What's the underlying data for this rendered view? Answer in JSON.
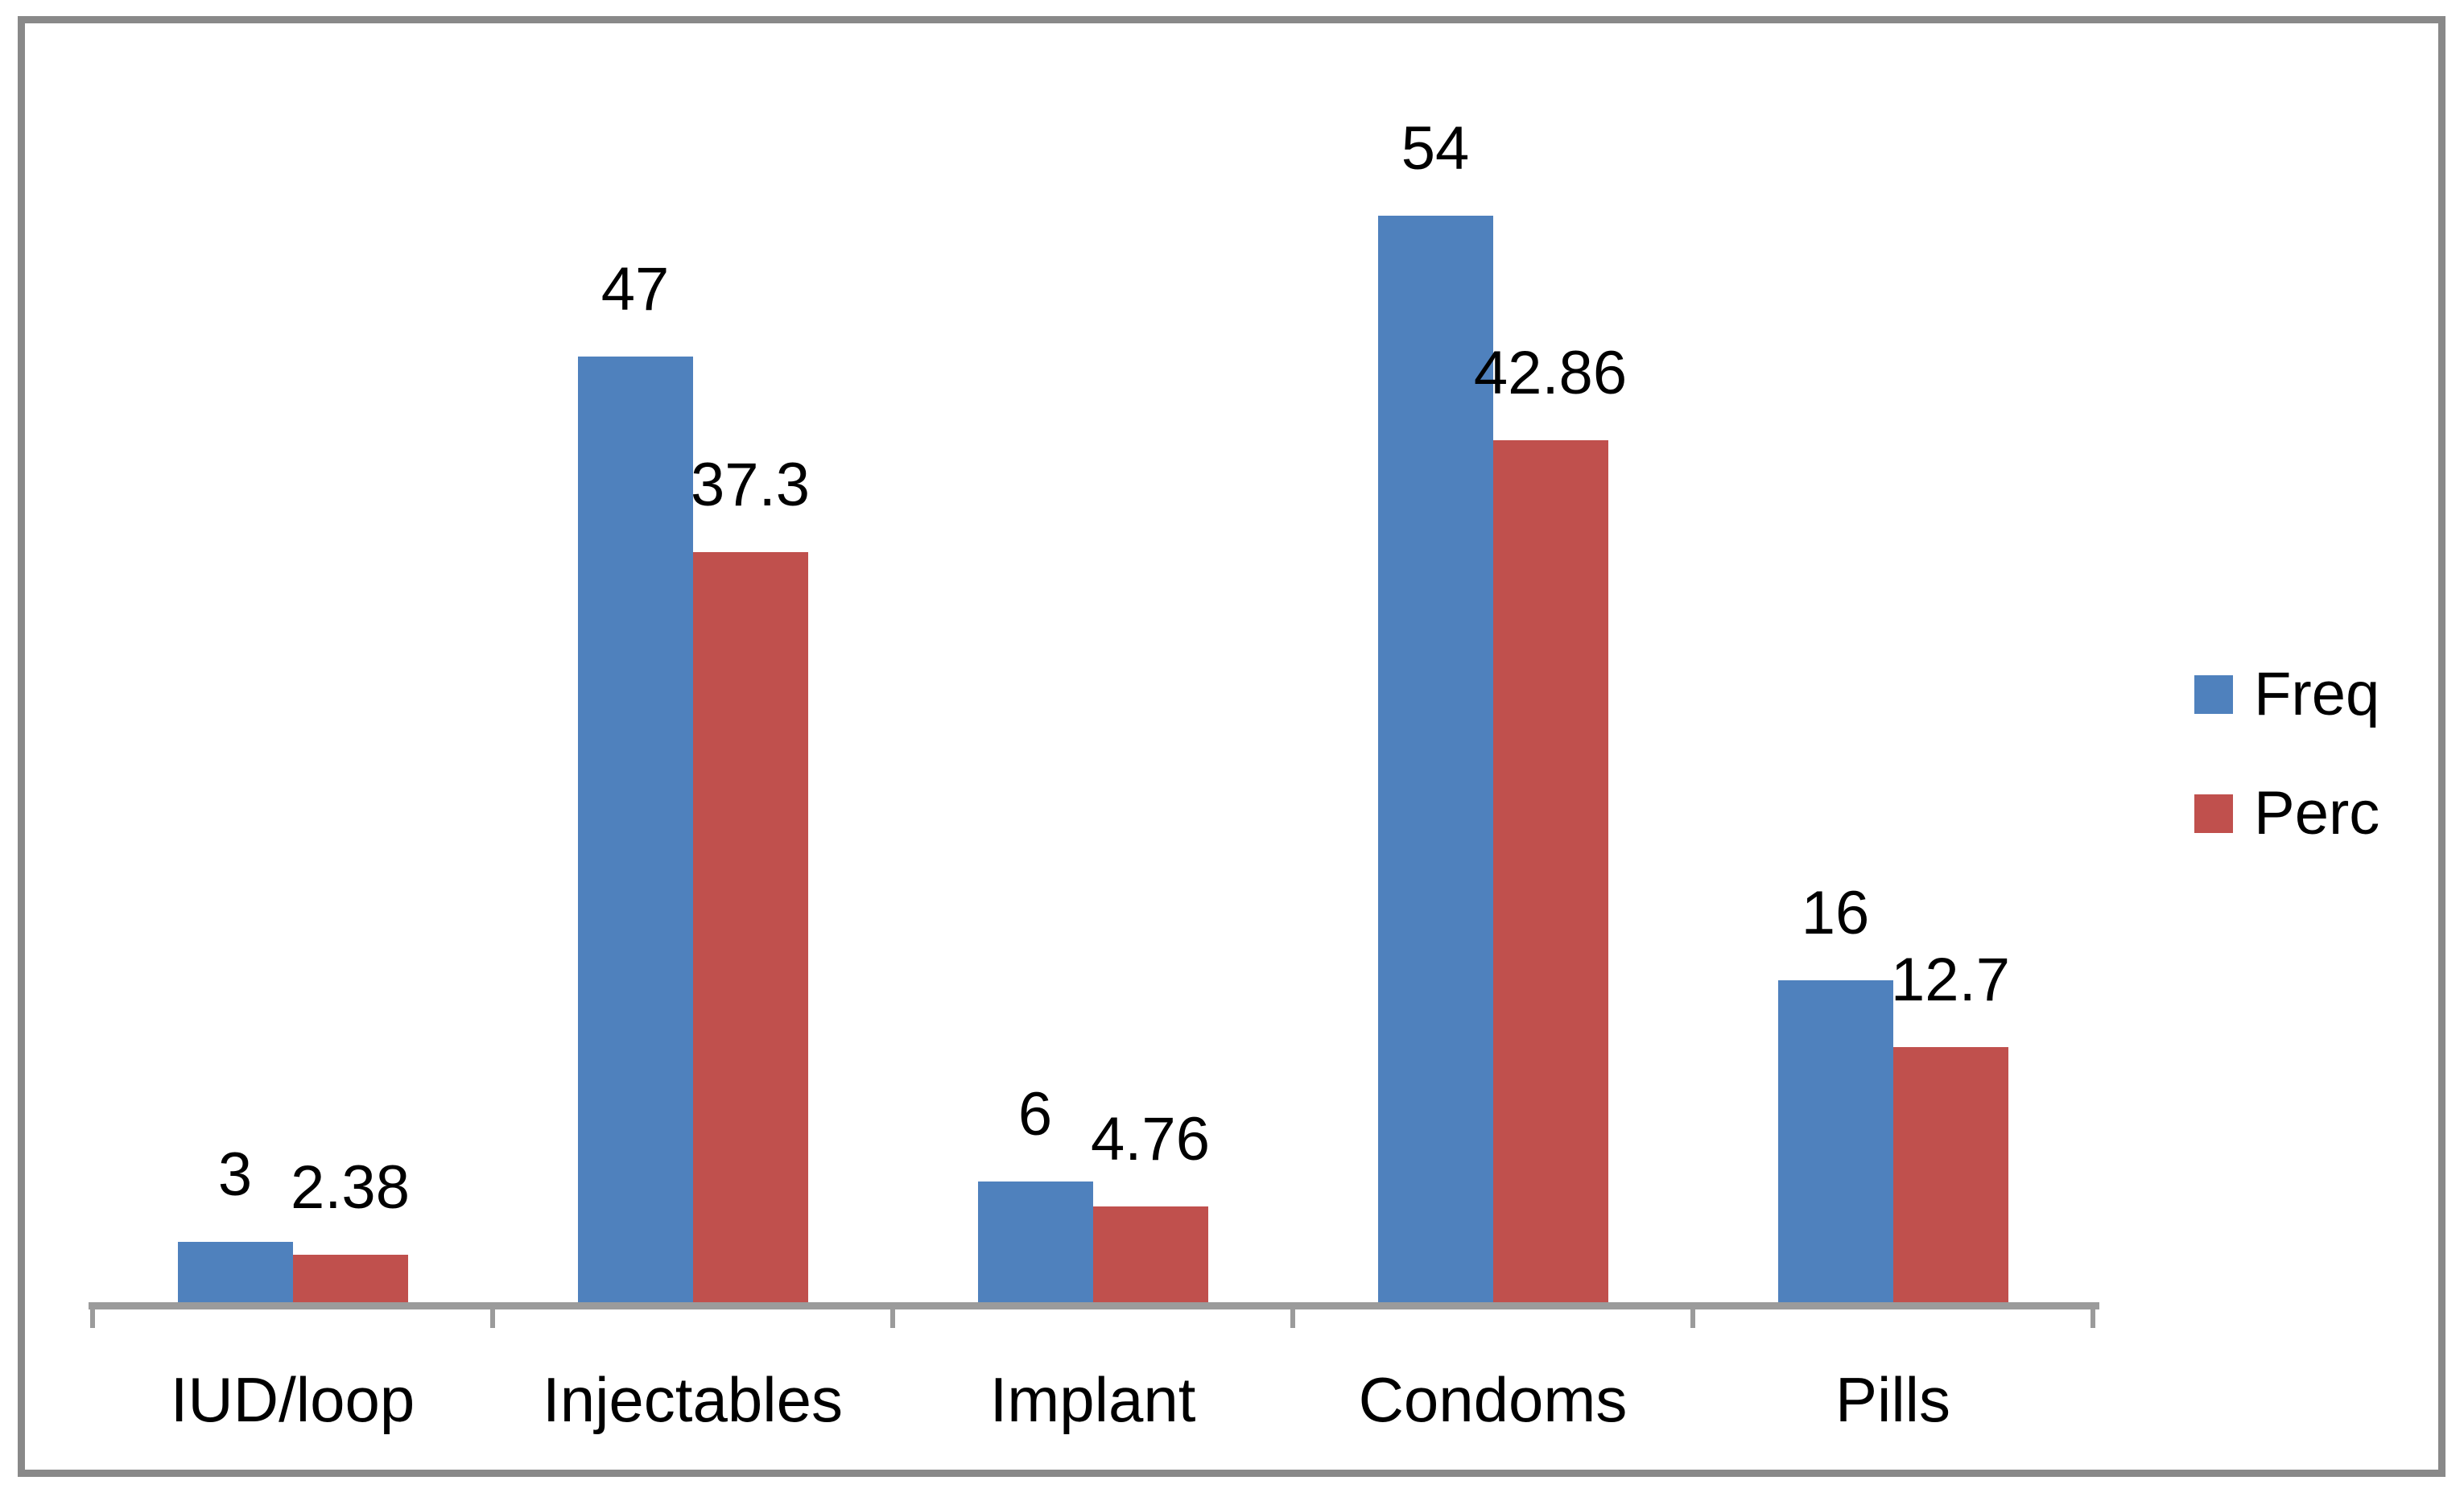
{
  "chart_data": {
    "type": "bar",
    "title": "",
    "xlabel": "",
    "ylabel": "",
    "categories": [
      "IUD/loop",
      "Injectables",
      "Implant",
      "Condoms",
      "Pills"
    ],
    "series": [
      {
        "name": "Freq",
        "color": "#4F81BD",
        "values": [
          3,
          47,
          6,
          54,
          16
        ],
        "labels": [
          "3",
          "47",
          "6",
          "54",
          "16"
        ]
      },
      {
        "name": "Perc",
        "color": "#C0504D",
        "values": [
          2.38,
          37.3,
          4.76,
          42.86,
          12.7
        ],
        "labels": [
          "2.38",
          "37.3",
          "4.76",
          "42.86",
          "12.7"
        ]
      }
    ],
    "ylim": [
      0,
      65
    ],
    "grid": false,
    "y_axis_visible": false,
    "legend_position": "right",
    "data_labels": "outside-end"
  },
  "colors": {
    "frame_border": "#898989",
    "axis_line": "#9B9B9B",
    "background": "#FFFFFF",
    "label_text": "#000000"
  }
}
